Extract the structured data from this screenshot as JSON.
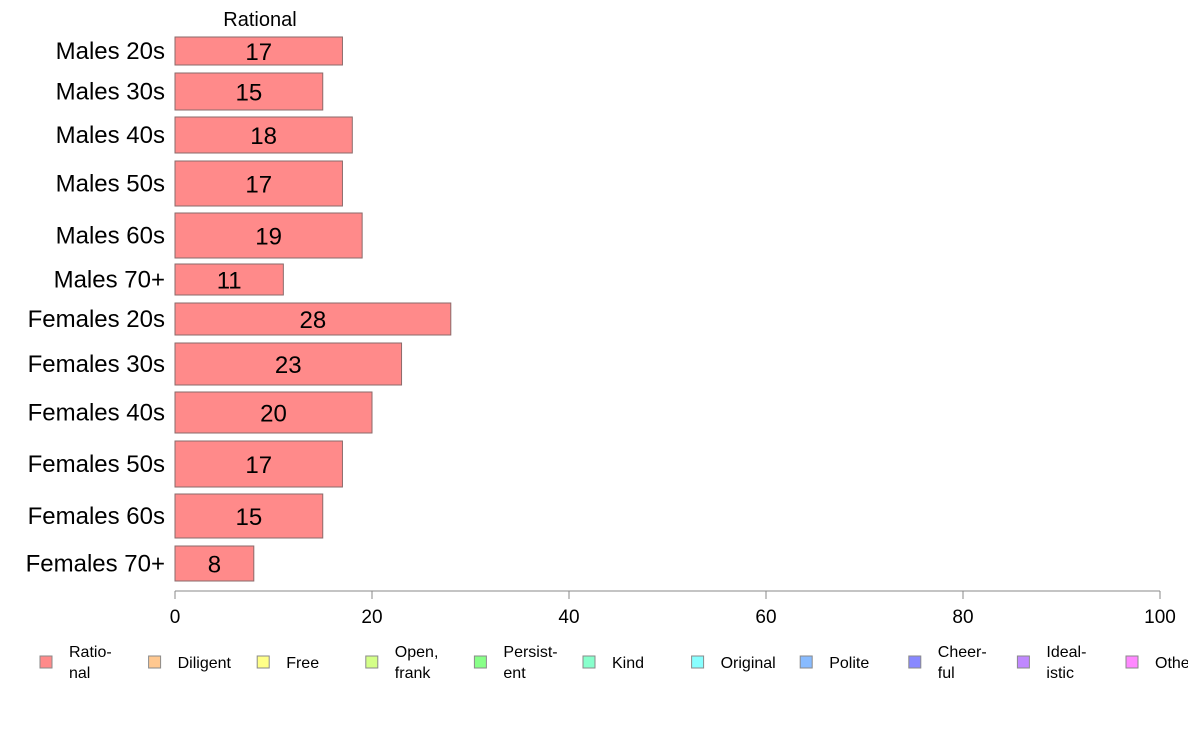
{
  "chart_data": {
    "type": "bar",
    "orientation": "horizontal",
    "title": "",
    "xlabel": "",
    "ylabel": "",
    "xlim": [
      0,
      100
    ],
    "xticks": [
      "0",
      "20",
      "40",
      "60",
      "80",
      "100"
    ],
    "grid": false,
    "legend_position": "bottom",
    "categories": [
      "Males 20s",
      "Males 30s",
      "Males 40s",
      "Males 50s",
      "Males 60s",
      "Males 70+",
      "Females 20s",
      "Females 30s",
      "Females 40s",
      "Females 50s",
      "Females 60s",
      "Females 70+"
    ],
    "series": [
      {
        "name": "Rational",
        "color": "#ff8a8a",
        "values": [
          17,
          15,
          18,
          17,
          19,
          11,
          28,
          23,
          20,
          17,
          15,
          8
        ],
        "labels": [
          "17",
          "15",
          "18",
          "17",
          "19",
          "11",
          "28",
          "23",
          "20",
          "17",
          "15",
          "8"
        ]
      }
    ],
    "legend": [
      {
        "lines": [
          "Ratio-",
          "nal"
        ],
        "color": "#ff8a8a"
      },
      {
        "lines": [
          "Diligent"
        ],
        "color": "#ffc890"
      },
      {
        "lines": [
          "Free"
        ],
        "color": "#ffff88"
      },
      {
        "lines": [
          "Open,",
          "frank"
        ],
        "color": "#d4ff88"
      },
      {
        "lines": [
          "Persist-",
          "ent"
        ],
        "color": "#88ff88"
      },
      {
        "lines": [
          "Kind"
        ],
        "color": "#88ffcc"
      },
      {
        "lines": [
          "Original"
        ],
        "color": "#88ffff"
      },
      {
        "lines": [
          "Polite"
        ],
        "color": "#88bbff"
      },
      {
        "lines": [
          "Cheer-",
          "ful"
        ],
        "color": "#8888ff"
      },
      {
        "lines": [
          "Ideal-",
          "istic"
        ],
        "color": "#c088ff"
      },
      {
        "lines": [
          "Other"
        ],
        "color": "#ff88ff"
      }
    ]
  }
}
